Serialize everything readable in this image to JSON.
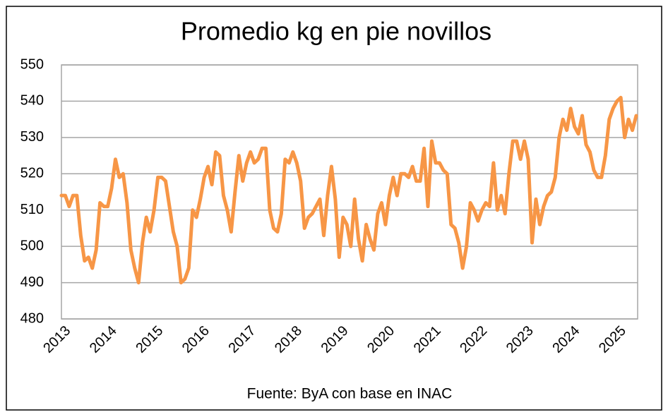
{
  "chart_data": {
    "type": "line",
    "title": "Promedio kg en pie novillos",
    "source": "Fuente: ByA con base en INAC",
    "categories": [
      "2013",
      null,
      null,
      null,
      null,
      null,
      null,
      null,
      null,
      null,
      null,
      null,
      "2014",
      null,
      null,
      null,
      null,
      null,
      null,
      null,
      null,
      null,
      null,
      null,
      "2015",
      null,
      null,
      null,
      null,
      null,
      null,
      null,
      null,
      null,
      null,
      null,
      "2016",
      null,
      null,
      null,
      null,
      null,
      null,
      null,
      null,
      null,
      null,
      null,
      "2017",
      null,
      null,
      null,
      null,
      null,
      null,
      null,
      null,
      null,
      null,
      null,
      "2018",
      null,
      null,
      null,
      null,
      null,
      null,
      null,
      null,
      null,
      null,
      null,
      "2019",
      null,
      null,
      null,
      null,
      null,
      null,
      null,
      null,
      null,
      null,
      null,
      "2020",
      null,
      null,
      null,
      null,
      null,
      null,
      null,
      null,
      null,
      null,
      null,
      "2021",
      null,
      null,
      null,
      null,
      null,
      null,
      null,
      null,
      null,
      null,
      null,
      "2022",
      null,
      null,
      null,
      null,
      null,
      null,
      null,
      null,
      null,
      null,
      null,
      "2023",
      null,
      null,
      null,
      null,
      null,
      null,
      null,
      null,
      null,
      null,
      null,
      "2024",
      null,
      null,
      null,
      null,
      null,
      null,
      null,
      null,
      null,
      null,
      null,
      "2025",
      null,
      null,
      null,
      null,
      null
    ],
    "values": [
      514,
      514,
      511,
      514,
      514,
      503,
      496,
      497,
      494,
      499,
      512,
      511,
      511,
      516,
      524,
      519,
      520,
      512,
      499,
      494,
      490,
      501,
      508,
      504,
      510,
      519,
      519,
      518,
      511,
      504,
      500,
      490,
      491,
      494,
      510,
      508,
      513,
      519,
      522,
      517,
      526,
      525,
      514,
      510,
      504,
      515,
      525,
      518,
      523,
      526,
      523,
      524,
      527,
      527,
      510,
      505,
      504,
      509,
      524,
      523,
      526,
      523,
      518,
      505,
      508,
      509,
      511,
      513,
      503,
      514,
      522,
      513,
      497,
      508,
      506,
      500,
      513,
      502,
      496,
      506,
      502,
      499,
      509,
      512,
      506,
      514,
      519,
      514,
      520,
      520,
      519,
      522,
      518,
      518,
      527,
      511,
      529,
      523,
      523,
      521,
      520,
      506,
      505,
      501,
      494,
      500,
      512,
      510,
      507,
      510,
      512,
      511,
      523,
      510,
      514,
      509,
      520,
      529,
      529,
      524,
      529,
      524,
      501,
      513,
      506,
      511,
      514,
      515,
      519,
      530,
      535,
      532,
      538,
      533,
      531,
      536,
      528,
      526,
      521,
      519,
      519,
      525,
      535,
      538,
      540,
      541,
      530,
      535,
      532,
      536
    ],
    "color": "#f79646",
    "ylim": [
      480,
      550
    ],
    "yticks": [
      480,
      490,
      500,
      510,
      520,
      530,
      540,
      550
    ],
    "grid": true
  }
}
